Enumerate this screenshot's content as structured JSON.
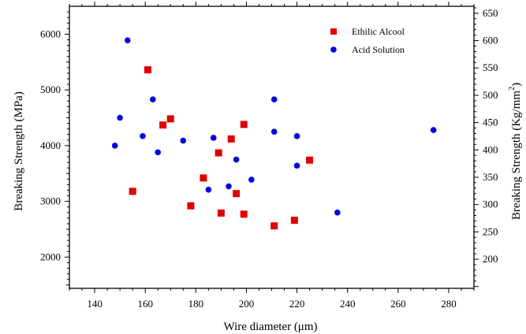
{
  "chart_data": {
    "type": "scatter",
    "xlabel": "Wire diameter (μm)",
    "ylabel": "Breaking Strength (MPa)",
    "y2label": "Breaking Strength (Kg/mm",
    "y2label_sup": "2",
    "y2label_end": ")",
    "xlim": [
      130,
      290
    ],
    "ylim": [
      1440,
      6500
    ],
    "y2lim": [
      146.7,
      662.8
    ],
    "xticks": [
      140,
      160,
      180,
      200,
      220,
      240,
      260,
      280
    ],
    "yticks": [
      2000,
      3000,
      4000,
      5000,
      6000
    ],
    "y2ticks": [
      200,
      250,
      300,
      350,
      400,
      450,
      500,
      550,
      600,
      650
    ],
    "legend_position": "top-right",
    "series": [
      {
        "name": "Ethilic Alcool",
        "marker": "square",
        "color": "#e00000",
        "points": [
          [
            155,
            3180
          ],
          [
            161,
            5360
          ],
          [
            167,
            4370
          ],
          [
            170,
            4480
          ],
          [
            178,
            2920
          ],
          [
            183,
            3420
          ],
          [
            189,
            3870
          ],
          [
            190,
            2790
          ],
          [
            194,
            4120
          ],
          [
            196,
            3140
          ],
          [
            199,
            4380
          ],
          [
            199,
            2770
          ],
          [
            211,
            2560
          ],
          [
            219,
            2660
          ],
          [
            225,
            3740
          ]
        ]
      },
      {
        "name": "Acid Solution",
        "marker": "circle",
        "color": "#0000e0",
        "points": [
          [
            148,
            4000
          ],
          [
            150,
            4500
          ],
          [
            153,
            5890
          ],
          [
            159,
            4170
          ],
          [
            163,
            4830
          ],
          [
            165,
            3880
          ],
          [
            175,
            4090
          ],
          [
            185,
            3210
          ],
          [
            187,
            4140
          ],
          [
            193,
            3270
          ],
          [
            196,
            3750
          ],
          [
            202,
            3390
          ],
          [
            211,
            4830
          ],
          [
            211,
            4250
          ],
          [
            220,
            4170
          ],
          [
            220,
            3640
          ],
          [
            236,
            2800
          ],
          [
            274,
            4280
          ]
        ]
      }
    ]
  },
  "colors": {
    "axis": "#000000",
    "ethilic": "#e00000",
    "acid": "#0000e0"
  }
}
